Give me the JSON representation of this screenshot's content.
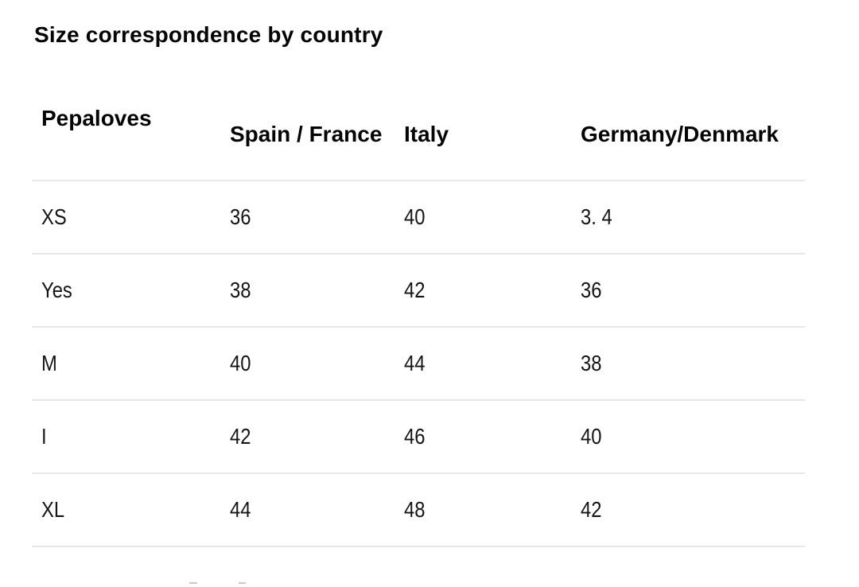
{
  "page": {
    "background_color": "#ffffff",
    "text_color": "#111111",
    "divider_color": "#e7e7e7"
  },
  "title": "Size correspondence by country",
  "size_table": {
    "columns": [
      "Pepaloves",
      "Spain / France",
      "Italy",
      "Germany/Denmark"
    ],
    "rows": [
      [
        "XS",
        "36",
        "40",
        "3. 4"
      ],
      [
        "Yes",
        "38",
        "42",
        "36"
      ],
      [
        "M",
        "40",
        "44",
        "38"
      ],
      [
        "I",
        "42",
        "46",
        "40"
      ],
      [
        "XL",
        "44",
        "48",
        "42"
      ]
    ]
  }
}
